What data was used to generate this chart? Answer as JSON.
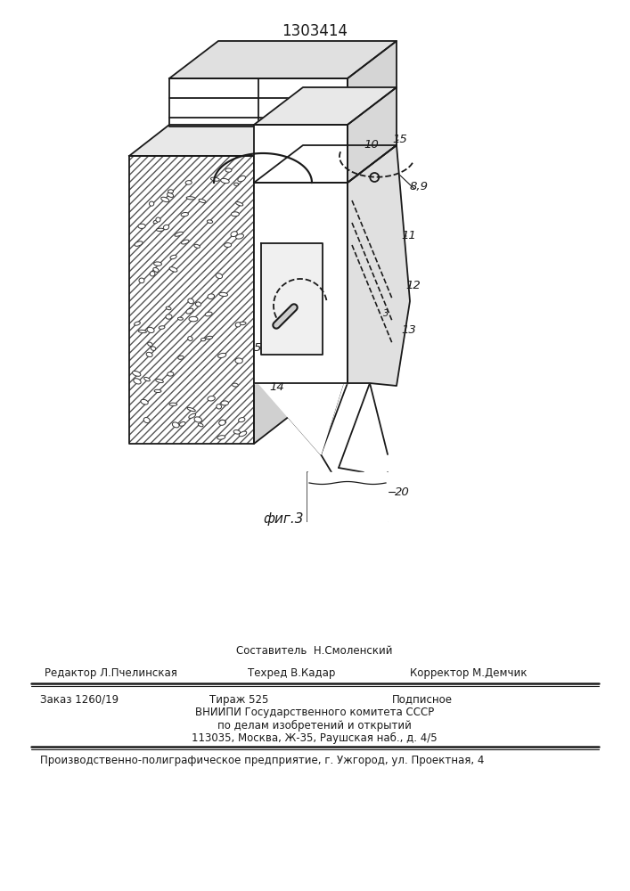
{
  "title": "1303414",
  "fig_label": "фиг.3",
  "bg_color": "#ffffff",
  "line_color": "#1a1a1a",
  "footer": {
    "sostavitel": "Составитель  Н.Смоленский",
    "row1_left": "Редактор Л.Пчелинская",
    "row1_mid": "Техред В.Кадар",
    "row1_right": "Корректор М.Демчик",
    "row2_col1": "Заказ 1260/19",
    "row2_col2": "Тираж 525",
    "row2_col3": "Подписное",
    "row3": "ВНИИПИ Государственного комитета СССР",
    "row4": "по делам изобретений и открытий",
    "row5": "113035, Москва, Ж-35, Раушская наб., д. 4/5",
    "bottom": "Производственно-полиграфическое предприятие, г. Ужгород, ул. Проектная, 4"
  }
}
